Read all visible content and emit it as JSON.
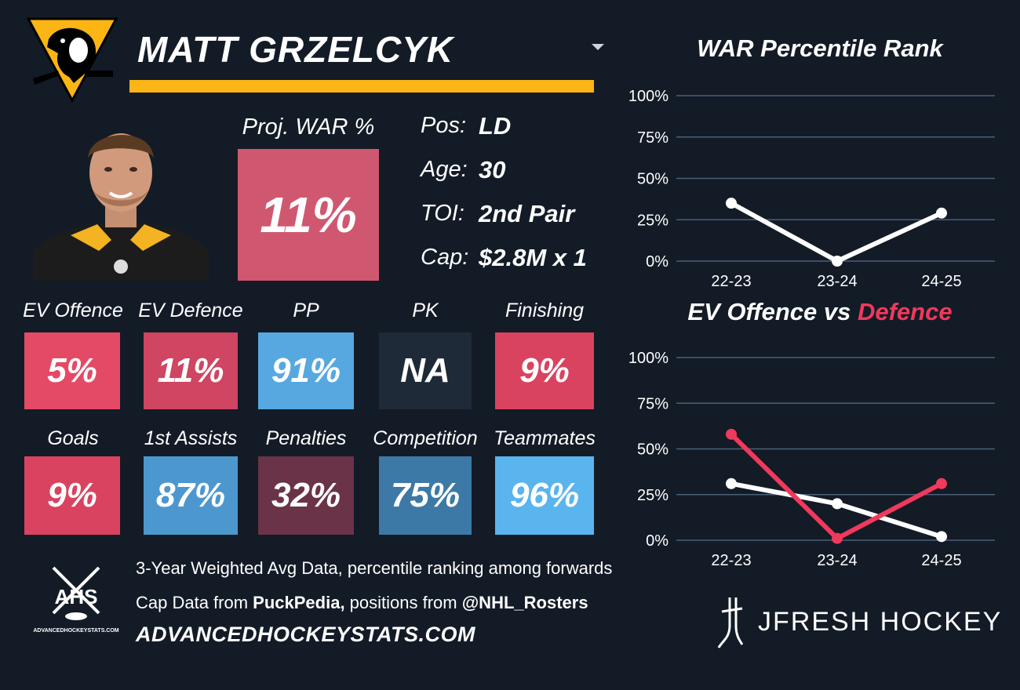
{
  "player": {
    "name": "MATT GRZELCYK",
    "proj_war_label": "Proj. WAR %",
    "proj_war_value": "11%",
    "info": [
      {
        "key": "Pos:",
        "value": "LD"
      },
      {
        "key": "Age:",
        "value": "30"
      },
      {
        "key": "TOI:",
        "value": "2nd Pair"
      },
      {
        "key": "Cap:",
        "value": "$2.8M x 1"
      }
    ]
  },
  "tiles": [
    {
      "label": "EV Offence",
      "value": "5%",
      "color": "#e44a66"
    },
    {
      "label": "EV Defence",
      "value": "11%",
      "color": "#cf4562"
    },
    {
      "label": "PP",
      "value": "91%",
      "color": "#57a8e0"
    },
    {
      "label": "PK",
      "value": "NA",
      "color": "#1e2a38"
    },
    {
      "label": "Finishing",
      "value": "9%",
      "color": "#d9435f"
    },
    {
      "label": "Goals",
      "value": "9%",
      "color": "#d9435f"
    },
    {
      "label": "1st Assists",
      "value": "87%",
      "color": "#4d97cf"
    },
    {
      "label": "Penalties",
      "value": "32%",
      "color": "#6b3347"
    },
    {
      "label": "Competition",
      "value": "75%",
      "color": "#3d79a6"
    },
    {
      "label": "Teammates",
      "value": "96%",
      "color": "#5ab4ee"
    }
  ],
  "footer": {
    "line1": "3-Year Weighted Avg Data, percentile ranking among forwards",
    "line2_a": "Cap Data from ",
    "line2_b": "PuckPedia,",
    "line2_c": " positions from ",
    "line2_d": "@NHL_Rosters",
    "site": "ADVANCEDHOCKEYSTATS.COM",
    "ahs_logo_text": "AHS",
    "ahs_logo_sub": "ADVANCEDHOCKEYSTATS.COM",
    "brand": "JFRESH HOCKEY"
  },
  "colors": {
    "background": "#131b26",
    "gold": "#fcb514",
    "defence_red": "#f0395c",
    "offence_white": "#ffffff"
  },
  "chart_data": [
    {
      "type": "line",
      "title": "WAR Percentile Rank",
      "x": [
        "22-23",
        "23-24",
        "24-25"
      ],
      "ylim": [
        0,
        100
      ],
      "yticks": [
        "0%",
        "25%",
        "50%",
        "75%",
        "100%"
      ],
      "series": [
        {
          "values": [
            35,
            0,
            29
          ],
          "color": "#ffffff"
        }
      ]
    },
    {
      "type": "line",
      "title_a": "EV Offence vs ",
      "title_b": "Defence",
      "x": [
        "22-23",
        "23-24",
        "24-25"
      ],
      "ylim": [
        0,
        100
      ],
      "yticks": [
        "0%",
        "25%",
        "50%",
        "75%",
        "100%"
      ],
      "series": [
        {
          "values": [
            31,
            20,
            2
          ],
          "color": "#ffffff"
        },
        {
          "values": [
            58,
            1,
            31
          ],
          "color": "#f0395c"
        }
      ]
    }
  ]
}
